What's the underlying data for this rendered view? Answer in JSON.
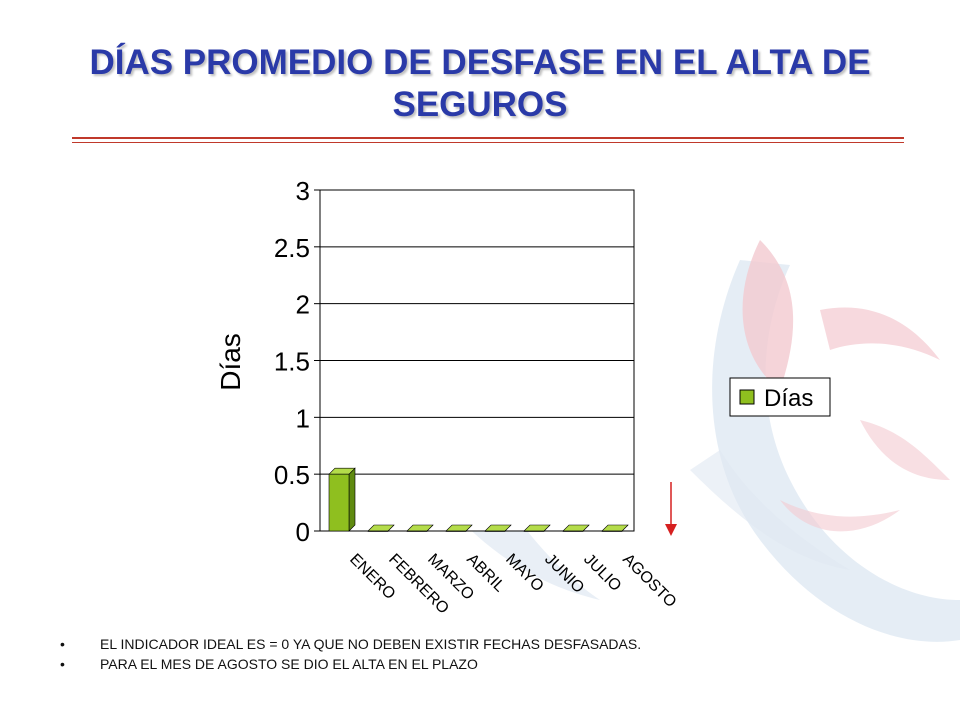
{
  "page": {
    "title": "DÍAS PROMEDIO DE DESFASE EN EL ALTA DE SEGUROS",
    "bullets": [
      "EL INDICADOR IDEAL ES = 0 YA QUE NO DEBEN EXISTIR FECHAS DESFASADAS.",
      "PARA EL MES DE AGOSTO SE DIO EL ALTA EN EL PLAZO"
    ]
  },
  "colors": {
    "title": "#2a3aa8",
    "bar": "#8fbf1f",
    "rule": "#c0392b",
    "arrow": "#d62020"
  },
  "chart_data": {
    "type": "bar",
    "title": "",
    "xlabel": "",
    "ylabel": "Días",
    "categories": [
      "ENERO",
      "FEBRERO",
      "MARZO",
      "ABRIL",
      "MAYO",
      "JUNIO",
      "JULIO",
      "AGOSTO"
    ],
    "series": [
      {
        "name": "Días",
        "values": [
          0.5,
          0,
          0,
          0,
          0,
          0,
          0,
          0
        ]
      }
    ],
    "ylim": [
      0,
      3
    ],
    "yticks": [
      "0",
      "0.5",
      "1",
      "1.5",
      "2",
      "2.5",
      "3"
    ],
    "grid": true,
    "legend_position": "right",
    "annotation": "red arrow pointing down at AGOSTO"
  }
}
